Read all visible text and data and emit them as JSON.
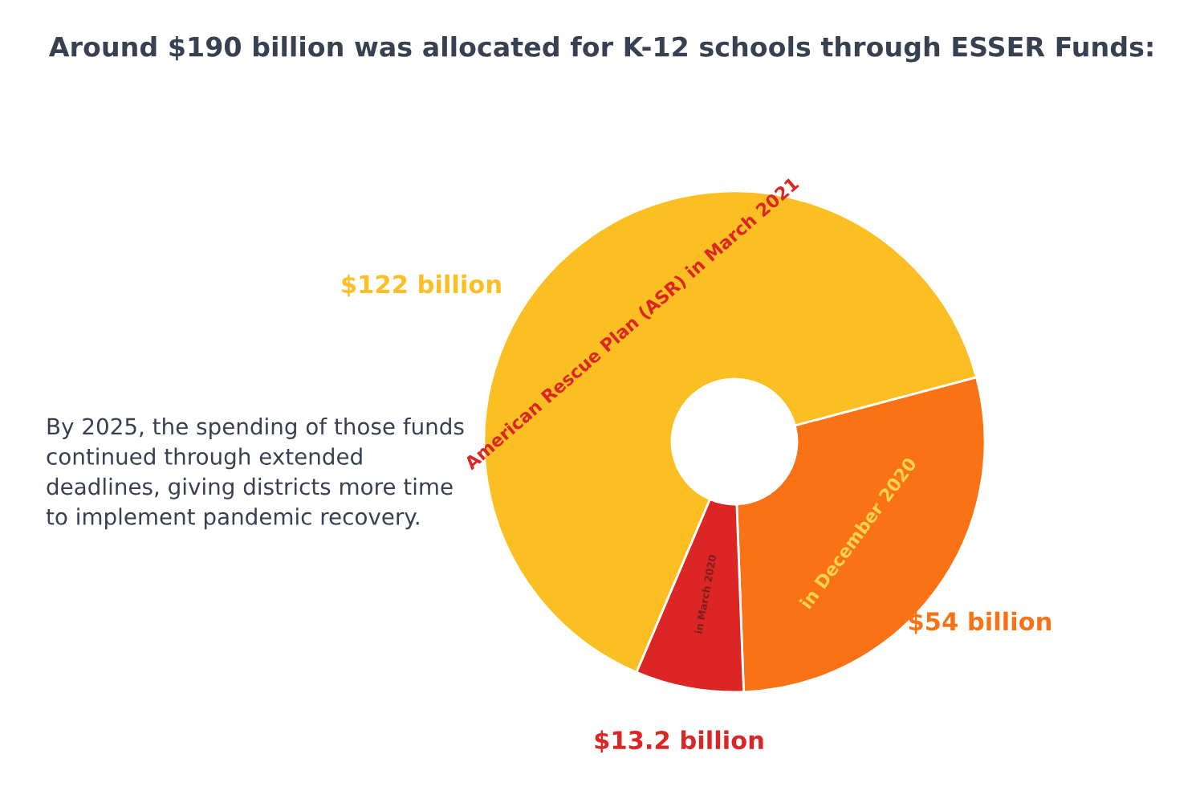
{
  "chart_data": {
    "type": "donut",
    "title": "Around $190 billion was allocated for K-12 schools through ESSER Funds:",
    "categories": [
      "American Rescue Plan (ASR) in March 2021",
      "in December 2020",
      "in March 2020"
    ],
    "values": [
      122,
      54,
      13.2
    ],
    "value_labels": [
      "$122 billion",
      "$54 billion",
      "$13.2 billion"
    ],
    "colors": [
      "#fbbf24",
      "#f97316",
      "#dc2626"
    ],
    "annotations": [
      "By 2025, the spending of those funds continued through extended deadlines, giving districts more time to implement pandemic recovery."
    ]
  }
}
